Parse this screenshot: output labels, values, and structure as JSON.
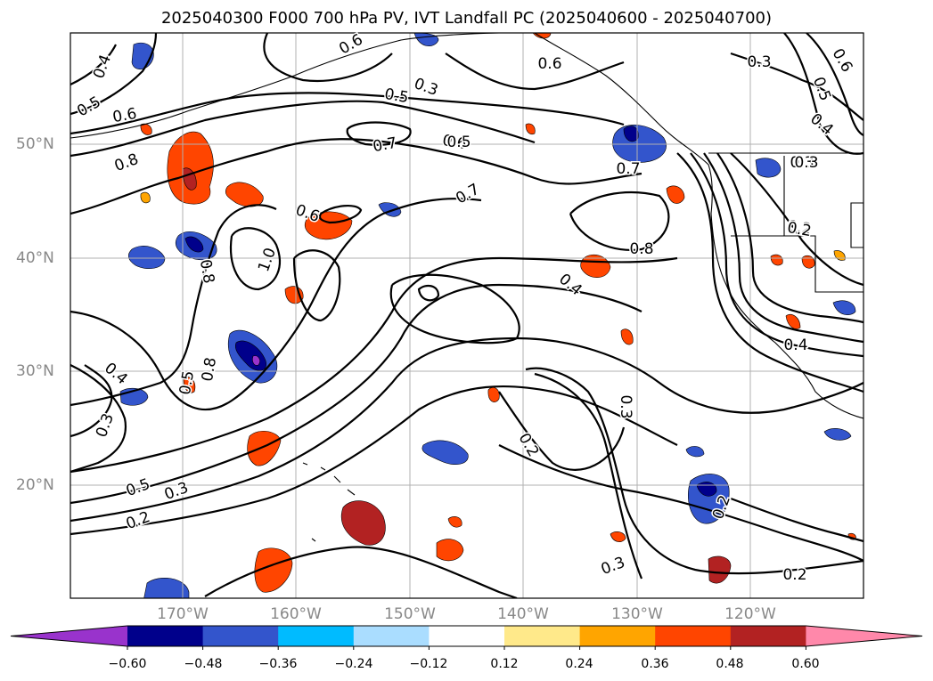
{
  "title": "2025040300 F000 700 hPa PV, IVT Landfall PC (2025040600 - 2025040700)",
  "lat_labels": [
    "50°N",
    "40°N",
    "30°N",
    "20°N"
  ],
  "lon_labels": [
    "170°W",
    "160°W",
    "150°W",
    "140°W",
    "130°W",
    "120°W"
  ],
  "colorbar": {
    "ticks": [
      "−0.60",
      "−0.48",
      "−0.36",
      "−0.24",
      "−0.12",
      "0.12",
      "0.24",
      "0.36",
      "0.48",
      "0.60"
    ],
    "colors": [
      "#9933cc",
      "#00008b",
      "#3355cc",
      "#00bbff",
      "#aaddff",
      "#ffffff",
      "#ffe98a",
      "#ffa500",
      "#ff4500",
      "#b22222",
      "#ff88aa"
    ]
  },
  "contour_labels": [
    "0.4",
    "0.5",
    "0.6",
    "0.8",
    "0.6",
    "0.7",
    "0.6",
    "0.7",
    "0.5",
    "0.3",
    "0.3",
    "0.6",
    "0.5",
    "0.4",
    "0.3",
    "0.2",
    "0.8",
    "1.0",
    "0.8",
    "0.4",
    "0.8",
    "0.7",
    "0.5",
    "0.4",
    "0.3",
    "0.5",
    "0.3",
    "0.2",
    "0.2",
    "0.3",
    "0.2",
    "0.3",
    "0.4",
    "0.2",
    "0.2",
    "0.3",
    "0.6",
    "0.5",
    "0.6"
  ]
}
